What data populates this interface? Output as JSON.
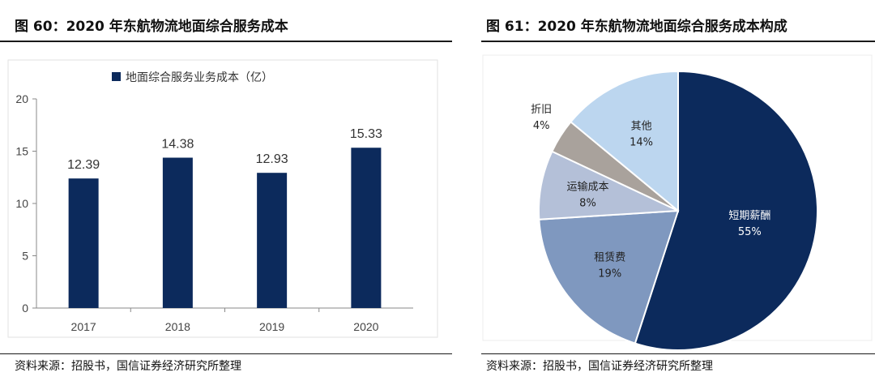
{
  "left": {
    "title": "图 60：2020 年东航物流地面综合服务成本",
    "source": "资料来源：招股书，国信证券经济研究所整理"
  },
  "right": {
    "title": "图 61：2020 年东航物流地面综合服务成本构成",
    "source": "资料来源：招股书，国信证券经济研究所整理"
  },
  "chart_data": [
    {
      "type": "bar",
      "title": "图 60：2020 年东航物流地面综合服务成本",
      "legend": "地面综合服务业务成本（亿）",
      "legend_position": "top-left",
      "categories": [
        "2017",
        "2018",
        "2019",
        "2020"
      ],
      "values": [
        12.39,
        14.38,
        12.93,
        15.33
      ],
      "value_labels": [
        "12.39",
        "14.38",
        "12.93",
        "15.33"
      ],
      "ylim": [
        0,
        20
      ],
      "yticks": [
        "0",
        "5",
        "10",
        "15",
        "20"
      ],
      "grid": false,
      "color": "#0c2a5c"
    },
    {
      "type": "pie",
      "title": "图 61：2020 年东航物流地面综合服务成本构成",
      "slices": [
        {
          "label": "短期薪酬",
          "pct_text": "55%",
          "value": 55,
          "color": "#0c2a5c",
          "text_color": "#ffffff"
        },
        {
          "label": "租赁费",
          "pct_text": "19%",
          "value": 19,
          "color": "#7f98bf",
          "text_color": "#222222"
        },
        {
          "label": "运输成本",
          "pct_text": "8%",
          "value": 8,
          "color": "#b4c0d8",
          "text_color": "#222222"
        },
        {
          "label": "折旧",
          "pct_text": "4%",
          "value": 4,
          "color": "#a9a29c",
          "text_color": "#222222"
        },
        {
          "label": "其他",
          "pct_text": "14%",
          "value": 14,
          "color": "#bcd6ef",
          "text_color": "#222222"
        }
      ]
    }
  ]
}
